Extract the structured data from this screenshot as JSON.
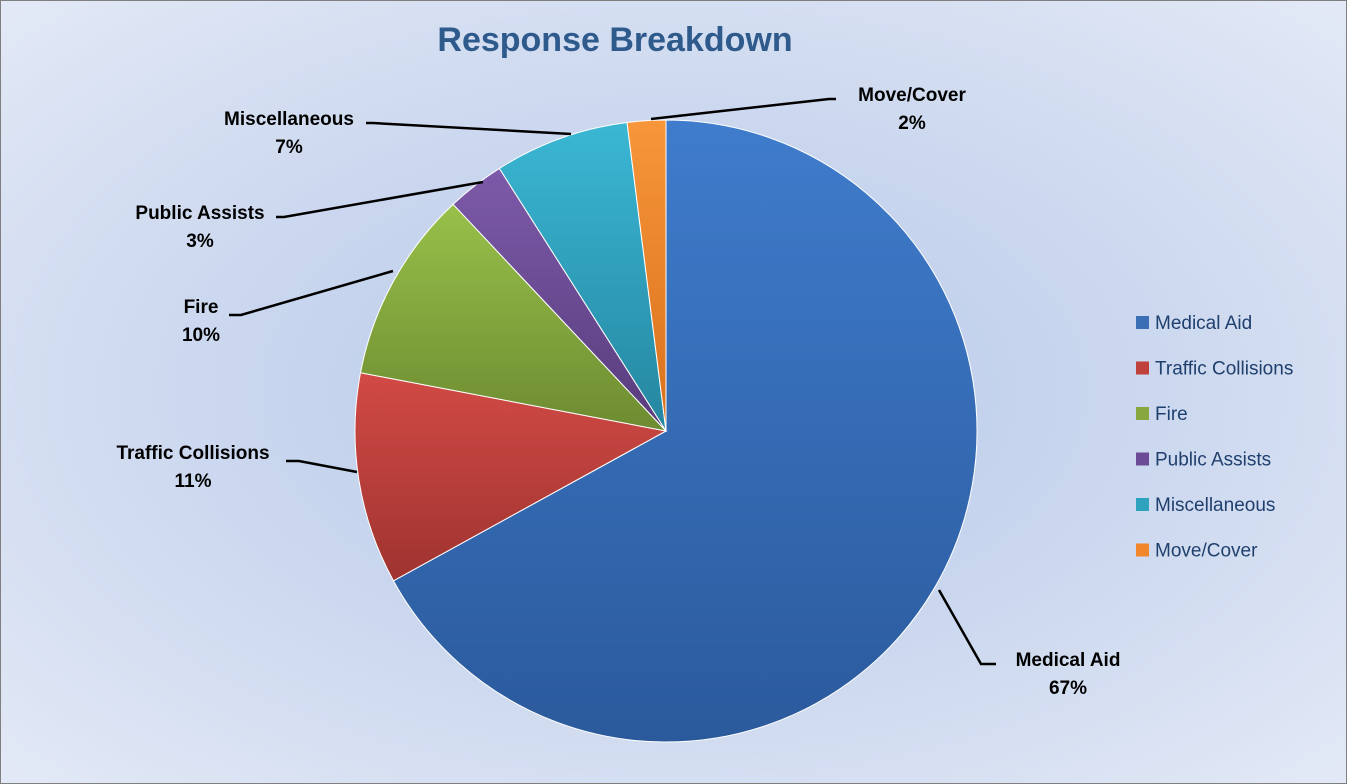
{
  "chart_data": {
    "type": "pie",
    "title": "Response Breakdown",
    "slices": [
      {
        "name": "Medical Aid",
        "value": 67,
        "label": "67%",
        "color": "#3a6fb5",
        "color_light": "#3f7ccc",
        "color_dark": "#2b5a9c"
      },
      {
        "name": "Traffic Collisions",
        "value": 11,
        "label": "11%",
        "color": "#c0403c",
        "color_light": "#d24a45",
        "color_dark": "#9f3330"
      },
      {
        "name": "Fire",
        "value": 10,
        "label": "10%",
        "color": "#86a83e",
        "color_light": "#98c04a",
        "color_dark": "#6d8b31"
      },
      {
        "name": "Public Assists",
        "value": 3,
        "label": "3%",
        "color": "#6c4b96",
        "color_light": "#7d5aa9",
        "color_dark": "#573c7c"
      },
      {
        "name": "Miscellaneous",
        "value": 7,
        "label": "7%",
        "color": "#2fa3be",
        "color_light": "#3ab7d4",
        "color_dark": "#2586a0"
      },
      {
        "name": "Move/Cover",
        "value": 2,
        "label": "2%",
        "color": "#f2862a",
        "color_light": "#f7963a",
        "color_dark": "#d8701c"
      }
    ],
    "legend_position": "right"
  }
}
